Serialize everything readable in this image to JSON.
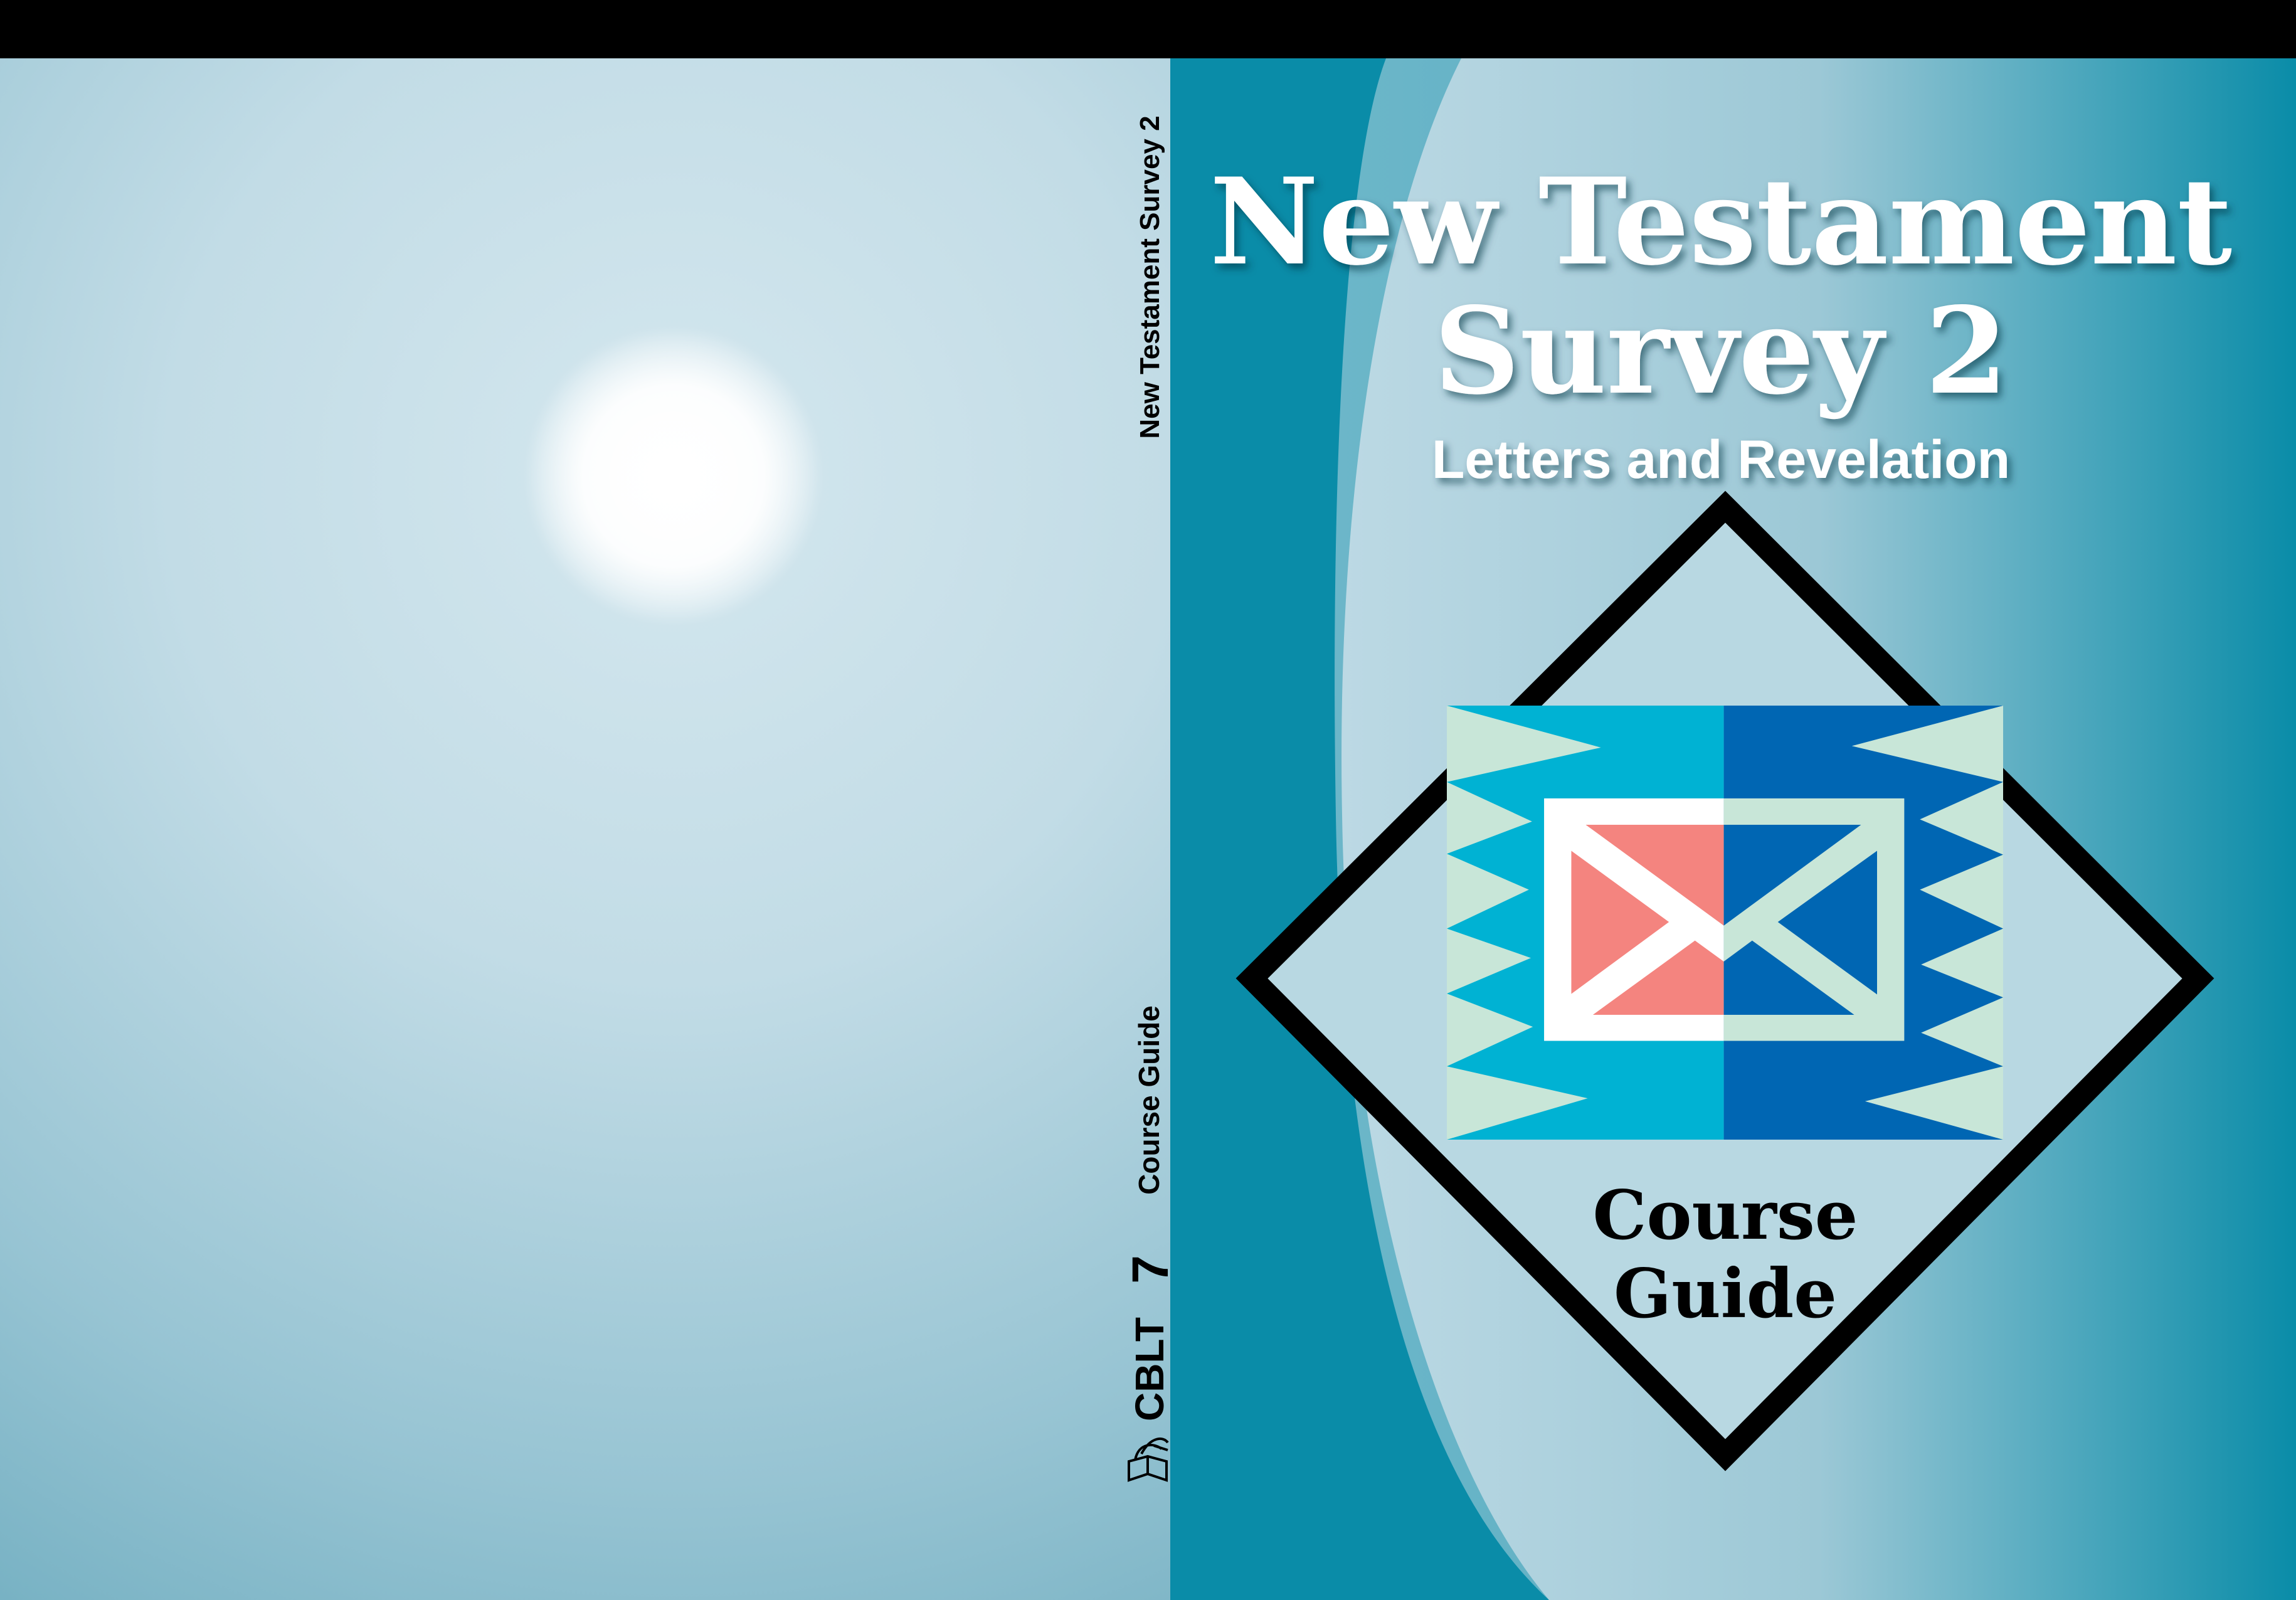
{
  "front_cover": {
    "title_line1": "New Testament",
    "title_line2": "Survey 2",
    "subtitle": "Letters and Revelation",
    "emblem_line1": "Course",
    "emblem_line2": "Guide",
    "emblem_icon": "envelope-icon"
  },
  "spine": {
    "title": "New Testament Survey 2",
    "type": "Course Guide",
    "number": "7",
    "series": "CBLT",
    "publisher_logo": "dove-over-open-book-icon"
  },
  "colors": {
    "front_teal": "#0a8ca8",
    "back_light": "#c6dfe8",
    "logo_cyan": "#00b2d3",
    "logo_blue": "#0066b3",
    "logo_mint": "#c8e6d8",
    "logo_salmon": "#f4847f"
  }
}
